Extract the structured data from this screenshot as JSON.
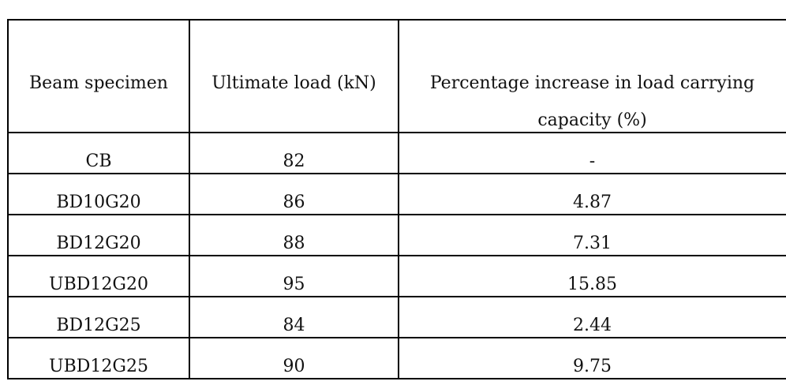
{
  "table": {
    "header": [
      "Beam specimen",
      "Ultimate load (kN)",
      "Percentage increase in load carrying capacity (%)"
    ],
    "rows": [
      [
        "CB",
        82,
        "-"
      ],
      [
        "BD10G20",
        86,
        4.87
      ],
      [
        "BD12G20",
        88,
        7.31
      ],
      [
        "UBD12G20",
        95,
        15.85
      ],
      [
        "BD12G25",
        84,
        2.44
      ],
      [
        "UBD12G25",
        90,
        9.75
      ]
    ]
  }
}
